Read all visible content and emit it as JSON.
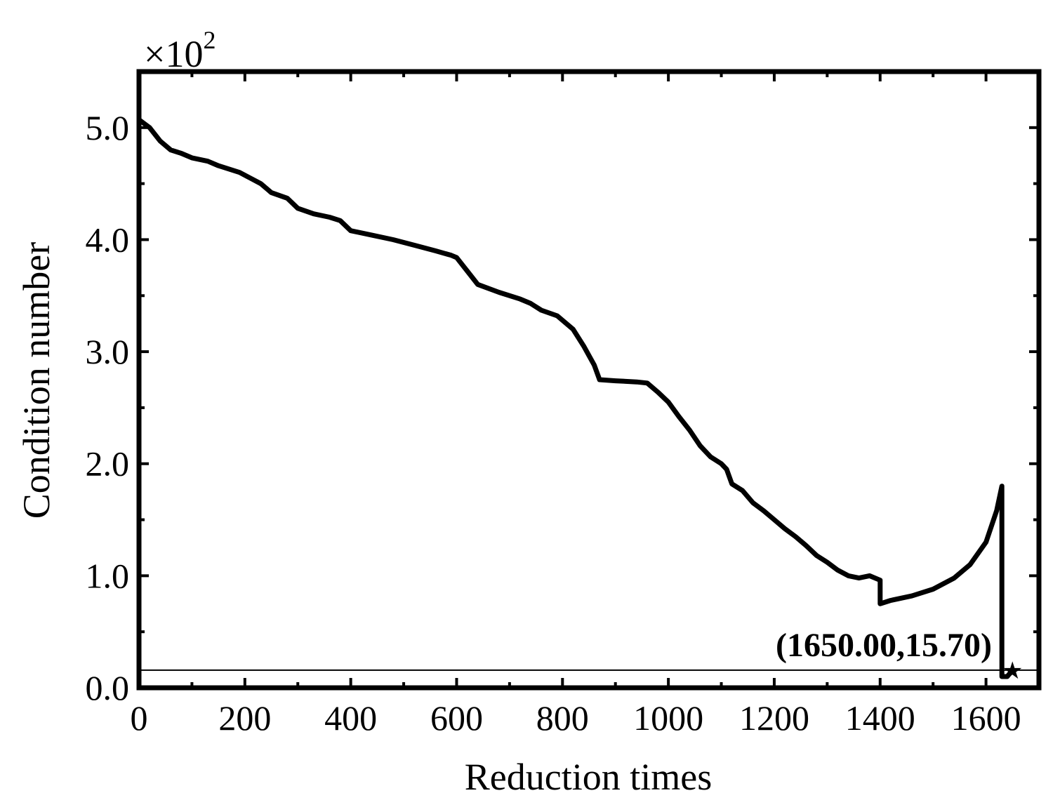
{
  "chart_data": {
    "type": "line",
    "title": "",
    "xlabel": "Reduction times",
    "ylabel": "Condition number",
    "y_multiplier": {
      "base": "×10",
      "exponent": "2"
    },
    "xlim": [
      0,
      1700
    ],
    "ylim": [
      0,
      5.5
    ],
    "xticks": [
      0,
      200,
      400,
      600,
      800,
      1000,
      1200,
      1400,
      1600
    ],
    "xtick_labels": [
      "0",
      "200",
      "400",
      "600",
      "800",
      "1000",
      "1200",
      "1400",
      "1600"
    ],
    "yticks": [
      0,
      1,
      2,
      3,
      4,
      5
    ],
    "ytick_labels": [
      "0.0",
      "1.0",
      "2.0",
      "3.0",
      "4.0",
      "5.0"
    ],
    "grid": false,
    "series": [
      {
        "x": [
          0,
          20,
          40,
          60,
          80,
          100,
          130,
          150,
          190,
          210,
          230,
          250,
          280,
          300,
          330,
          360,
          380,
          400,
          440,
          480,
          520,
          560,
          590,
          600,
          620,
          640,
          680,
          720,
          740,
          760,
          790,
          800,
          820,
          840,
          860,
          870,
          900,
          940,
          960,
          980,
          1000,
          1020,
          1040,
          1060,
          1080,
          1100,
          1110,
          1120,
          1140,
          1160,
          1180,
          1200,
          1220,
          1240,
          1260,
          1280,
          1300,
          1320,
          1340,
          1360,
          1380,
          1400,
          1400,
          1420,
          1460,
          1500,
          1540,
          1570,
          1600,
          1620,
          1630,
          1630,
          1640,
          1650
        ],
        "y": [
          5.07,
          5.0,
          4.88,
          4.8,
          4.77,
          4.73,
          4.7,
          4.66,
          4.6,
          4.55,
          4.5,
          4.42,
          4.37,
          4.28,
          4.23,
          4.2,
          4.17,
          4.08,
          4.04,
          4.0,
          3.95,
          3.9,
          3.86,
          3.84,
          3.72,
          3.6,
          3.53,
          3.47,
          3.43,
          3.37,
          3.32,
          3.28,
          3.2,
          3.05,
          2.88,
          2.75,
          2.74,
          2.73,
          2.72,
          2.64,
          2.55,
          2.42,
          2.3,
          2.16,
          2.06,
          2.0,
          1.95,
          1.82,
          1.76,
          1.65,
          1.58,
          1.5,
          1.42,
          1.35,
          1.27,
          1.18,
          1.12,
          1.05,
          1.0,
          0.98,
          1.0,
          0.96,
          0.75,
          0.78,
          0.82,
          0.88,
          0.98,
          1.1,
          1.3,
          1.58,
          1.8,
          0.1,
          0.1,
          0.157
        ]
      }
    ],
    "reference_line": {
      "y": 0.157
    },
    "annotation": {
      "text": "(1650.00,15.70)",
      "x": 1650,
      "y": 0.157,
      "marker": "star"
    }
  }
}
